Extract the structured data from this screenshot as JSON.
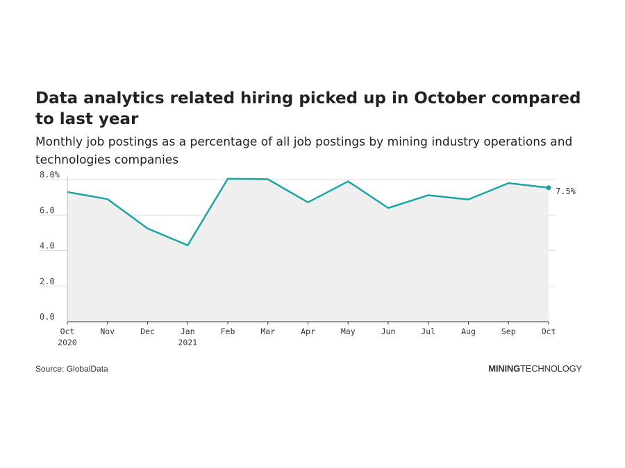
{
  "header": {
    "title": "Data analytics related hiring picked up in October compared to last year",
    "subtitle": "Monthly job postings as a percentage of all job postings by mining industry operations and technologies companies"
  },
  "footer": {
    "source": "Source: GlobalData",
    "brand_bold": "MINING",
    "brand_regular": "TECHNOLOGY"
  },
  "colors": {
    "line": "#1ba5a5",
    "area": "#efefef",
    "grid": "#dddddd",
    "text": "#222222"
  },
  "chart_data": {
    "type": "area",
    "x_labels": [
      [
        "Oct",
        "2020"
      ],
      [
        "Nov"
      ],
      [
        "Dec"
      ],
      [
        "Jan",
        "2021"
      ],
      [
        "Feb"
      ],
      [
        "Mar"
      ],
      [
        "Apr"
      ],
      [
        "May"
      ],
      [
        "Jun"
      ],
      [
        "Jul"
      ],
      [
        "Aug"
      ],
      [
        "Sep"
      ],
      [
        "Oct"
      ]
    ],
    "values": [
      7.3,
      6.9,
      5.25,
      4.3,
      8.05,
      8.02,
      6.72,
      7.9,
      6.4,
      7.12,
      6.88,
      7.8,
      7.54
    ],
    "y_ticks": [
      "0.0",
      "2.0",
      "4.0",
      "6.0",
      "8.0%"
    ],
    "ylim": [
      0,
      8
    ],
    "end_label": "7.5%",
    "grid": true
  }
}
